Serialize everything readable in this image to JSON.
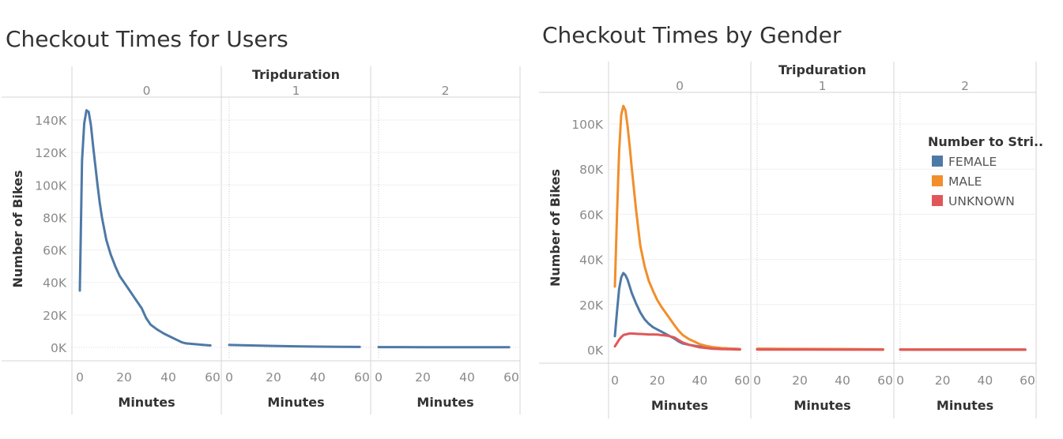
{
  "chart_data": [
    {
      "type": "line",
      "title": "Checkout Times for Users",
      "facet_label": "Tripduration",
      "facets": [
        "0",
        "1",
        "2"
      ],
      "xlabel": "Minutes",
      "ylabel": "Number of Bikes",
      "xticks": [
        "0",
        "20",
        "40",
        "60"
      ],
      "yticks": [
        "0K",
        "20K",
        "40K",
        "60K",
        "80K",
        "100K",
        "120K",
        "140K"
      ],
      "xlim": [
        0,
        60
      ],
      "ylim": [
        -4000,
        155000
      ],
      "legend": "none",
      "series": [
        {
          "color": "#4e79a7",
          "panels": [
            {
              "x": [
                0,
                1,
                2,
                3,
                4,
                5,
                6,
                7,
                8,
                9,
                10,
                12,
                14,
                16,
                18,
                20,
                22,
                25,
                28,
                30,
                32,
                35,
                38,
                41,
                44,
                46,
                48,
                52,
                56,
                59
              ],
              "y": [
                35000,
                115000,
                138000,
                146000,
                145000,
                137000,
                124000,
                112000,
                100000,
                89000,
                80000,
                66000,
                57000,
                50000,
                44000,
                40000,
                36000,
                30000,
                24000,
                18000,
                14000,
                11000,
                8500,
                6500,
                4500,
                3200,
                2500,
                2000,
                1500,
                1200
              ]
            },
            {
              "x": [
                0,
                10,
                20,
                30,
                40,
                50,
                59
              ],
              "y": [
                1500,
                1200,
                900,
                700,
                500,
                400,
                300
              ]
            },
            {
              "x": [
                0,
                20,
                40,
                59
              ],
              "y": [
                200,
                150,
                120,
                100
              ]
            }
          ]
        }
      ]
    },
    {
      "type": "line",
      "title": "Checkout Times by Gender",
      "facet_label": "Tripduration",
      "facets": [
        "0",
        "1",
        "2"
      ],
      "xlabel": "Minutes",
      "ylabel": "Number of Bikes",
      "xticks": [
        "0",
        "20",
        "40",
        "60"
      ],
      "yticks": [
        "0K",
        "20K",
        "40K",
        "60K",
        "80K",
        "100K"
      ],
      "xlim": [
        0,
        60
      ],
      "ylim": [
        -3000,
        113000
      ],
      "legend": "top-right",
      "legend_title": "Number to Stri..",
      "series": [
        {
          "name": "FEMALE",
          "color": "#4e79a7",
          "panels": [
            {
              "x": [
                0,
                1,
                2,
                3,
                4,
                5,
                6,
                7,
                8,
                10,
                12,
                14,
                16,
                18,
                20,
                22,
                25,
                28,
                30,
                32,
                35,
                38,
                40,
                43,
                46,
                50,
                55,
                59
              ],
              "y": [
                6000,
                17000,
                27000,
                32000,
                34000,
                33000,
                31000,
                28000,
                25000,
                20500,
                16500,
                13500,
                11500,
                10000,
                9000,
                8000,
                6500,
                5000,
                3700,
                2800,
                2200,
                1700,
                1400,
                1100,
                900,
                700,
                500,
                350
              ]
            },
            {
              "x": [
                0,
                20,
                40,
                59
              ],
              "y": [
                400,
                300,
                200,
                150
              ]
            },
            {
              "x": [
                0,
                30,
                59
              ],
              "y": [
                100,
                80,
                60
              ]
            }
          ]
        },
        {
          "name": "MALE",
          "color": "#f28e2b",
          "panels": [
            {
              "x": [
                0,
                1,
                2,
                3,
                4,
                5,
                6,
                7,
                8,
                10,
                12,
                14,
                16,
                18,
                20,
                22,
                25,
                28,
                30,
                32,
                35,
                38,
                40,
                43,
                46,
                50,
                55,
                59
              ],
              "y": [
                28000,
                60000,
                88000,
                104000,
                108000,
                106000,
                99000,
                90000,
                80000,
                62000,
                46000,
                37000,
                30500,
                26000,
                22000,
                19000,
                15000,
                11000,
                8500,
                6500,
                4700,
                3400,
                2500,
                1700,
                1200,
                800,
                500,
                350
              ]
            },
            {
              "x": [
                0,
                20,
                40,
                59
              ],
              "y": [
                500,
                400,
                300,
                200
              ]
            },
            {
              "x": [
                0,
                30,
                59
              ],
              "y": [
                150,
                100,
                80
              ]
            }
          ]
        },
        {
          "name": "UNKNOWN",
          "color": "#e15759",
          "panels": [
            {
              "x": [
                0,
                1,
                2,
                3,
                4,
                5,
                6,
                7,
                8,
                10,
                12,
                14,
                16,
                18,
                20,
                22,
                25,
                28,
                30,
                32,
                35,
                38,
                40,
                43,
                46,
                50,
                55,
                59
              ],
              "y": [
                1500,
                3000,
                4500,
                5600,
                6500,
                6800,
                7000,
                7200,
                7200,
                7100,
                7000,
                6900,
                6800,
                6800,
                6700,
                6500,
                6200,
                5500,
                4300,
                3200,
                2200,
                1500,
                1100,
                800,
                500,
                300,
                200,
                100
              ]
            },
            {
              "x": [
                0,
                59
              ],
              "y": [
                100,
                50
              ]
            },
            {
              "x": [
                0,
                59
              ],
              "y": [
                50,
                30
              ]
            }
          ]
        }
      ]
    }
  ]
}
